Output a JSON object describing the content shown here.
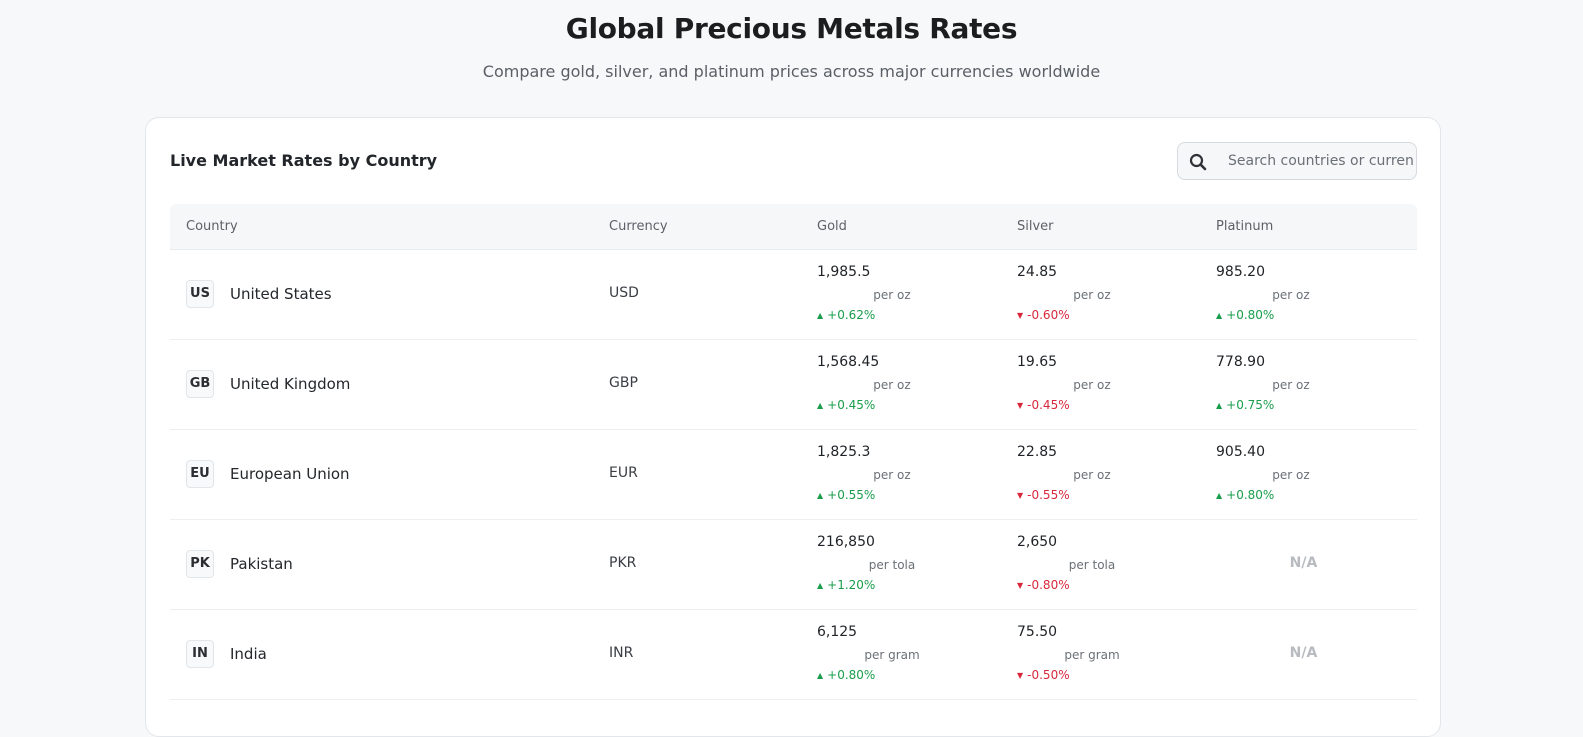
{
  "header": {
    "title": "Global Precious Metals Rates",
    "subtitle": "Compare gold, silver, and platinum prices across major currencies worldwide"
  },
  "card": {
    "title": "Live Market Rates by Country",
    "search_placeholder": "Search countries or currencies...",
    "search_icon": "search-icon"
  },
  "table": {
    "columns": [
      "Country",
      "Currency",
      "Gold",
      "Silver",
      "Platinum"
    ],
    "rows": [
      {
        "code": "US",
        "country": "United States",
        "currency": "USD",
        "gold": {
          "price": "1,985.5",
          "unit": "per oz",
          "change": "+0.62%",
          "dir": "up"
        },
        "silver": {
          "price": "24.85",
          "unit": "per oz",
          "change": "-0.60%",
          "dir": "down"
        },
        "platinum": {
          "price": "985.20",
          "unit": "per oz",
          "change": "+0.80%",
          "dir": "up"
        }
      },
      {
        "code": "GB",
        "country": "United Kingdom",
        "currency": "GBP",
        "gold": {
          "price": "1,568.45",
          "unit": "per oz",
          "change": "+0.45%",
          "dir": "up"
        },
        "silver": {
          "price": "19.65",
          "unit": "per oz",
          "change": "-0.45%",
          "dir": "down"
        },
        "platinum": {
          "price": "778.90",
          "unit": "per oz",
          "change": "+0.75%",
          "dir": "up"
        }
      },
      {
        "code": "EU",
        "country": "European Union",
        "currency": "EUR",
        "gold": {
          "price": "1,825.3",
          "unit": "per oz",
          "change": "+0.55%",
          "dir": "up"
        },
        "silver": {
          "price": "22.85",
          "unit": "per oz",
          "change": "-0.55%",
          "dir": "down"
        },
        "platinum": {
          "price": "905.40",
          "unit": "per oz",
          "change": "+0.80%",
          "dir": "up"
        }
      },
      {
        "code": "PK",
        "country": "Pakistan",
        "currency": "PKR",
        "gold": {
          "price": "216,850",
          "unit": "per tola",
          "change": "+1.20%",
          "dir": "up"
        },
        "silver": {
          "price": "2,650",
          "unit": "per tola",
          "change": "-0.80%",
          "dir": "down"
        },
        "platinum": {
          "na": "N/A"
        }
      },
      {
        "code": "IN",
        "country": "India",
        "currency": "INR",
        "gold": {
          "price": "6,125",
          "unit": "per gram",
          "change": "+0.80%",
          "dir": "up"
        },
        "silver": {
          "price": "75.50",
          "unit": "per gram",
          "change": "-0.50%",
          "dir": "down"
        },
        "platinum": {
          "na": "N/A"
        }
      }
    ]
  },
  "colors": {
    "up": "#1a9d4b",
    "down": "#d8283c",
    "na": "#b7bbc0"
  }
}
